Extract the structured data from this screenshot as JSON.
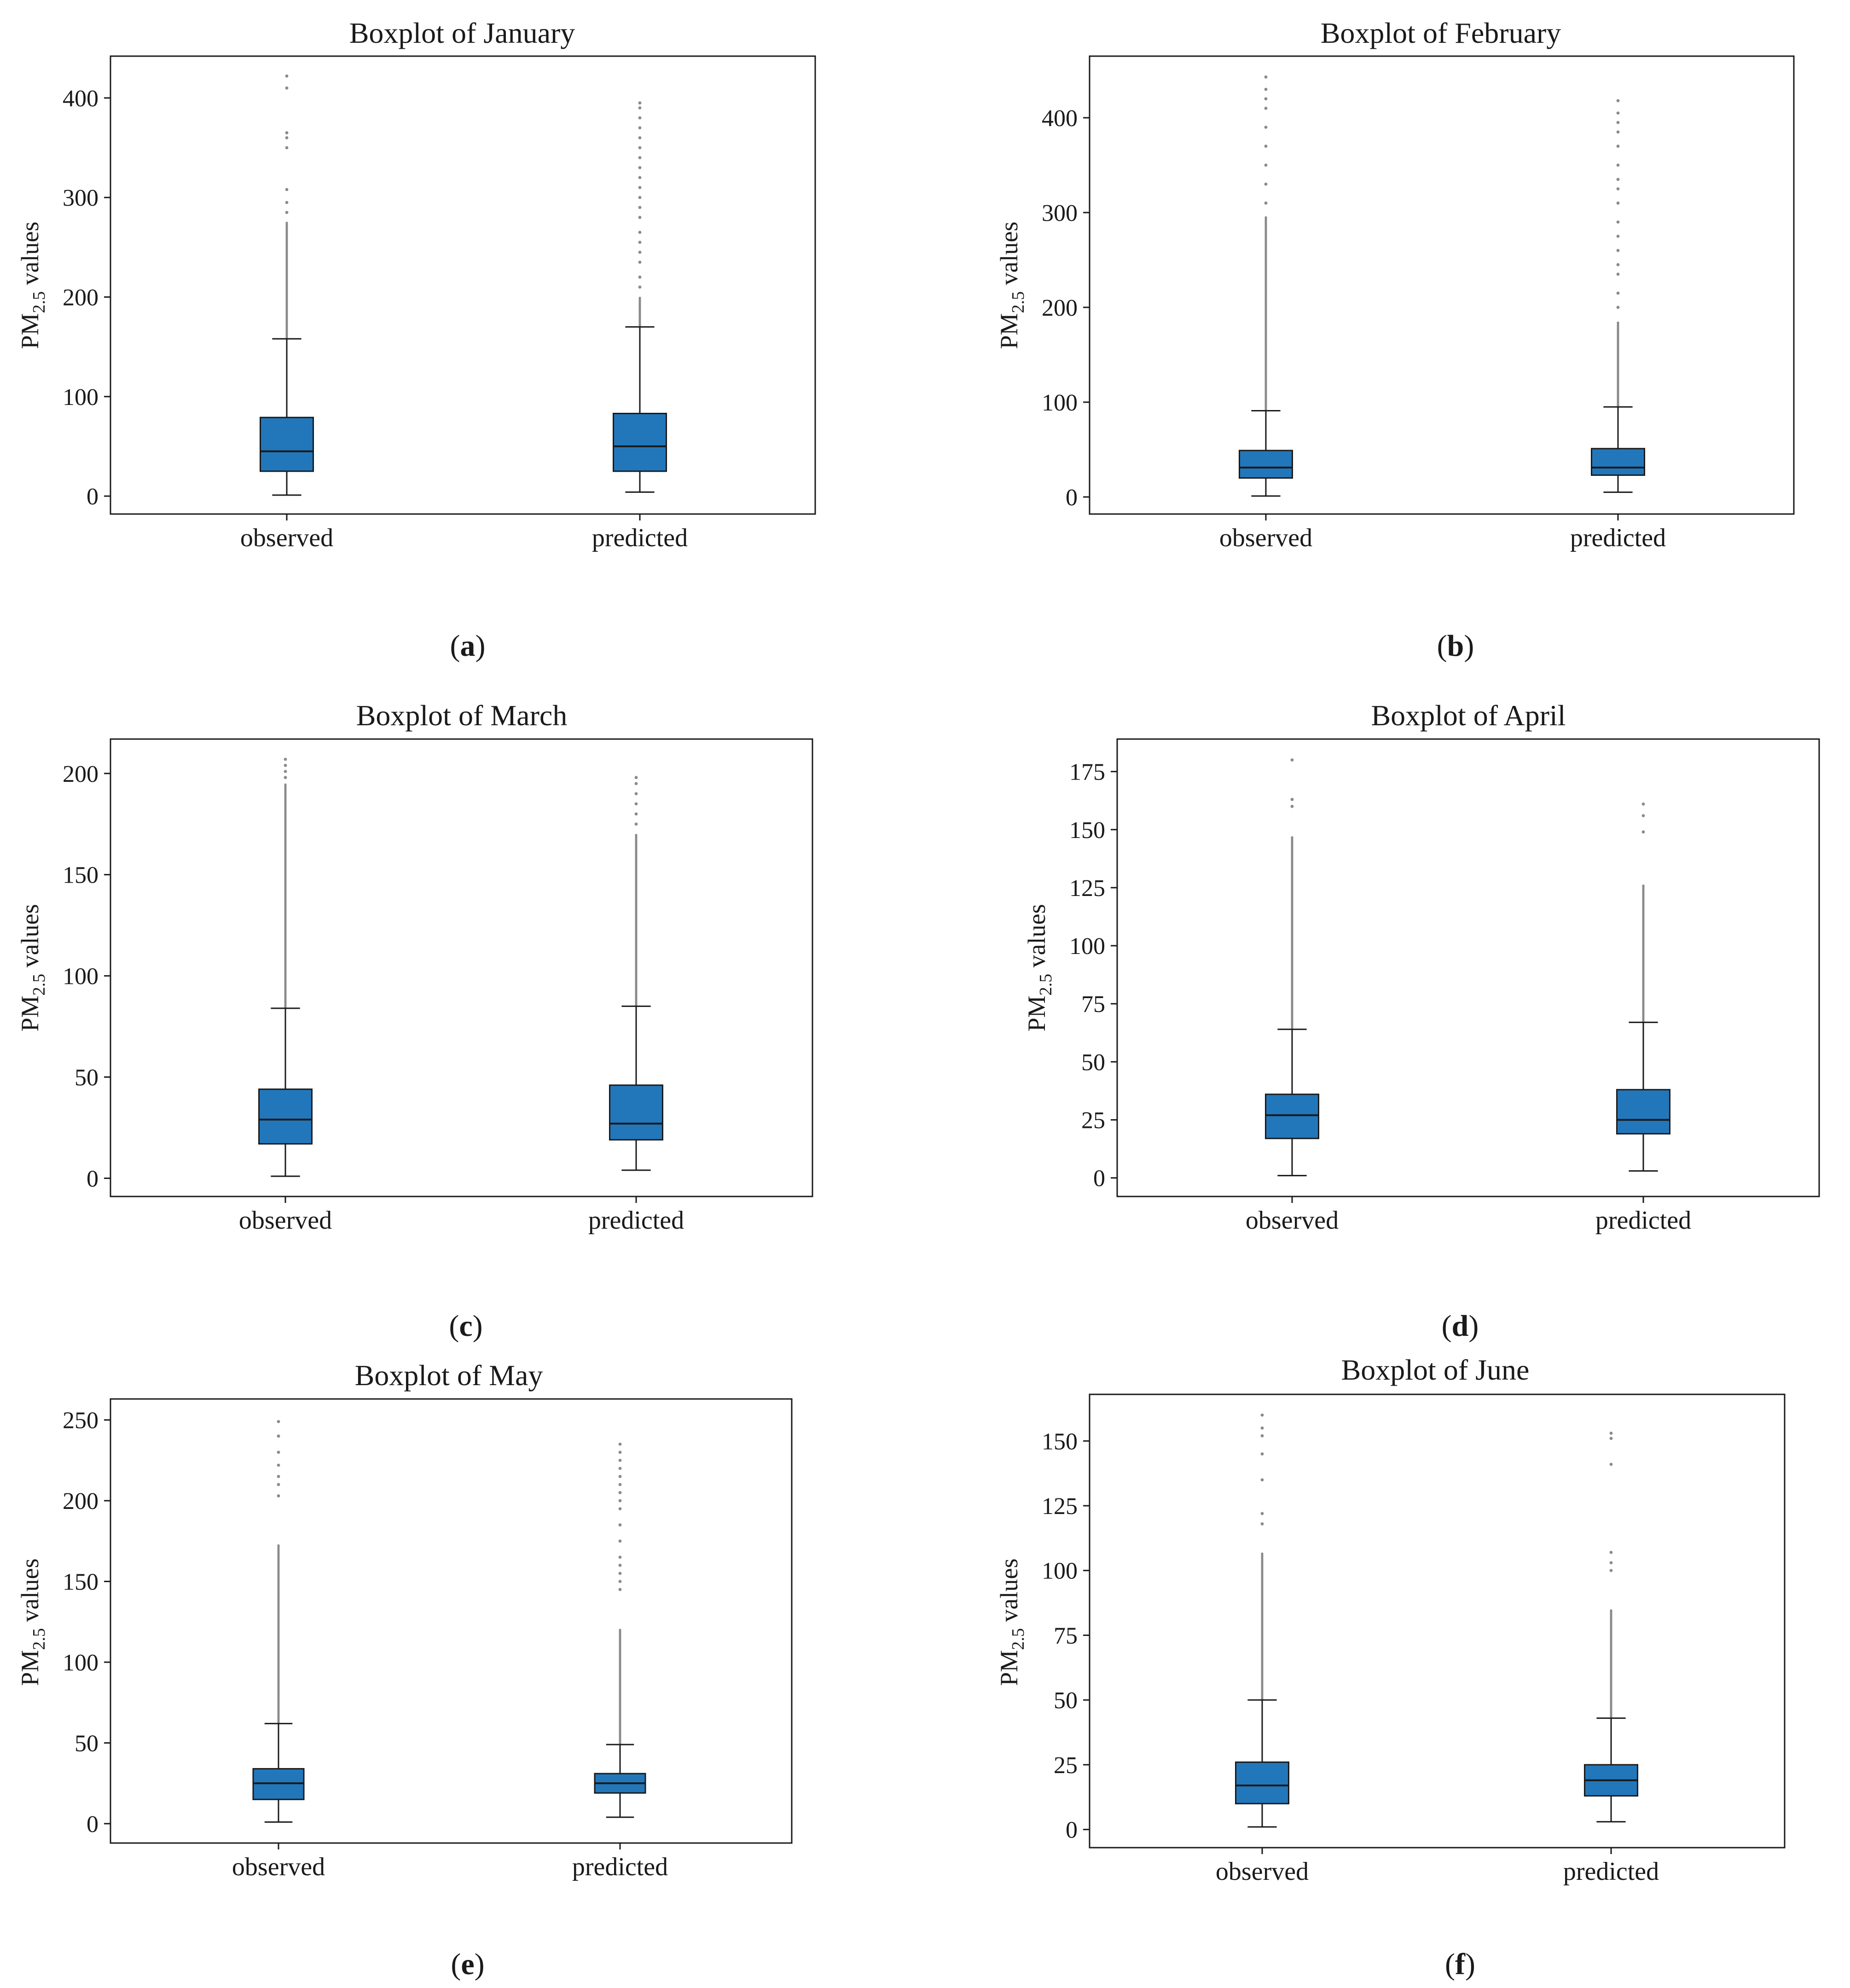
{
  "figure": {
    "colors": {
      "box_fill": "#2277bb",
      "box_edge": "#1a1a1a",
      "axis": "#1a1a1a",
      "outlier": "#8a8a8a",
      "text": "#1a1a1a"
    }
  },
  "chart_data": [
    {
      "type": "boxplot",
      "panel_label": "a",
      "title": "Boxplot of January",
      "ylabel": {
        "main": "PM",
        "sub": "2.5",
        "tail": " values"
      },
      "ylim": [
        -18,
        442
      ],
      "yticks": [
        0,
        100,
        200,
        300,
        400
      ],
      "categories": [
        "observed",
        "predicted"
      ],
      "boxes": [
        {
          "name": "observed",
          "whisker_low": 1,
          "q1": 25,
          "median": 45,
          "q3": 79,
          "whisker_high": 158,
          "outlier_range": [
            158,
            275
          ],
          "outliers": [
            285,
            295,
            308,
            350,
            360,
            365,
            410,
            422
          ]
        },
        {
          "name": "predicted",
          "whisker_low": 4,
          "q1": 25,
          "median": 50,
          "q3": 83,
          "whisker_high": 170,
          "outlier_range": [
            170,
            200
          ],
          "outliers": [
            210,
            220,
            235,
            245,
            255,
            265,
            280,
            290,
            300,
            310,
            320,
            330,
            340,
            350,
            360,
            370,
            380,
            390,
            395
          ]
        }
      ]
    },
    {
      "type": "boxplot",
      "panel_label": "b",
      "title": "Boxplot of February",
      "ylabel": {
        "main": "PM",
        "sub": "2.5",
        "tail": " values"
      },
      "ylim": [
        -18,
        465
      ],
      "yticks": [
        0,
        100,
        200,
        300,
        400
      ],
      "categories": [
        "observed",
        "predicted"
      ],
      "boxes": [
        {
          "name": "observed",
          "whisker_low": 1,
          "q1": 20,
          "median": 31,
          "q3": 49,
          "whisker_high": 91,
          "outlier_range": [
            91,
            295
          ],
          "outliers": [
            310,
            330,
            350,
            370,
            390,
            410,
            420,
            430,
            443
          ]
        },
        {
          "name": "predicted",
          "whisker_low": 5,
          "q1": 23,
          "median": 31,
          "q3": 51,
          "whisker_high": 95,
          "outlier_range": [
            95,
            185
          ],
          "outliers": [
            200,
            215,
            235,
            245,
            260,
            275,
            290,
            310,
            325,
            335,
            350,
            370,
            385,
            395,
            405,
            418
          ]
        }
      ]
    },
    {
      "type": "boxplot",
      "panel_label": "c",
      "title": "Boxplot of March",
      "ylabel": {
        "main": "PM",
        "sub": "2.5",
        "tail": " values"
      },
      "ylim": [
        -9,
        217
      ],
      "yticks": [
        0,
        50,
        100,
        150,
        200
      ],
      "categories": [
        "observed",
        "predicted"
      ],
      "boxes": [
        {
          "name": "observed",
          "whisker_low": 1,
          "q1": 17,
          "median": 29,
          "q3": 44,
          "whisker_high": 84,
          "outlier_range": [
            84,
            195
          ],
          "outliers": [
            198,
            201,
            204,
            207
          ]
        },
        {
          "name": "predicted",
          "whisker_low": 4,
          "q1": 19,
          "median": 27,
          "q3": 46,
          "whisker_high": 85,
          "outlier_range": [
            85,
            170
          ],
          "outliers": [
            175,
            180,
            185,
            190,
            195,
            198
          ]
        }
      ]
    },
    {
      "type": "boxplot",
      "panel_label": "d",
      "title": "Boxplot of April",
      "ylabel": {
        "main": "PM",
        "sub": "2.5",
        "tail": " values"
      },
      "ylim": [
        -8,
        189
      ],
      "yticks": [
        0,
        25,
        50,
        75,
        100,
        125,
        150,
        175
      ],
      "categories": [
        "observed",
        "predicted"
      ],
      "boxes": [
        {
          "name": "observed",
          "whisker_low": 1,
          "q1": 17,
          "median": 27,
          "q3": 36,
          "whisker_high": 64,
          "outlier_range": [
            64,
            147
          ],
          "outliers": [
            160,
            163,
            180
          ]
        },
        {
          "name": "predicted",
          "whisker_low": 3,
          "q1": 19,
          "median": 25,
          "q3": 38,
          "whisker_high": 67,
          "outlier_range": [
            67,
            126
          ],
          "outliers": [
            149,
            156,
            161
          ]
        }
      ]
    },
    {
      "type": "boxplot",
      "panel_label": "e",
      "title": "Boxplot of May",
      "ylabel": {
        "main": "PM",
        "sub": "2.5",
        "tail": " values"
      },
      "ylim": [
        -12,
        263
      ],
      "yticks": [
        0,
        50,
        100,
        150,
        200,
        250
      ],
      "categories": [
        "observed",
        "predicted"
      ],
      "boxes": [
        {
          "name": "observed",
          "whisker_low": 1,
          "q1": 15,
          "median": 25,
          "q3": 34,
          "whisker_high": 62,
          "outlier_range": [
            62,
            173
          ],
          "outliers": [
            203,
            210,
            215,
            222,
            230,
            240,
            249
          ]
        },
        {
          "name": "predicted",
          "whisker_low": 4,
          "q1": 19,
          "median": 25,
          "q3": 31,
          "whisker_high": 49,
          "outlier_range": [
            49,
            120
          ],
          "outliers": [
            145,
            150,
            155,
            160,
            165,
            175,
            185,
            195,
            200,
            205,
            210,
            215,
            220,
            225,
            230,
            235
          ]
        }
      ]
    },
    {
      "type": "boxplot",
      "panel_label": "f",
      "title": "Boxplot of June",
      "ylabel": {
        "main": "PM",
        "sub": "2.5",
        "tail": " values"
      },
      "ylim": [
        -7,
        168
      ],
      "yticks": [
        0,
        25,
        50,
        75,
        100,
        125,
        150
      ],
      "categories": [
        "observed",
        "predicted"
      ],
      "boxes": [
        {
          "name": "observed",
          "whisker_low": 1,
          "q1": 10,
          "median": 17,
          "q3": 26,
          "whisker_high": 50,
          "outlier_range": [
            50,
            107
          ],
          "outliers": [
            118,
            122,
            135,
            145,
            152,
            155,
            160
          ]
        },
        {
          "name": "predicted",
          "whisker_low": 3,
          "q1": 13,
          "median": 19,
          "q3": 25,
          "whisker_high": 43,
          "outlier_range": [
            43,
            85
          ],
          "outliers": [
            100,
            103,
            107,
            141,
            151,
            153
          ]
        }
      ]
    }
  ]
}
